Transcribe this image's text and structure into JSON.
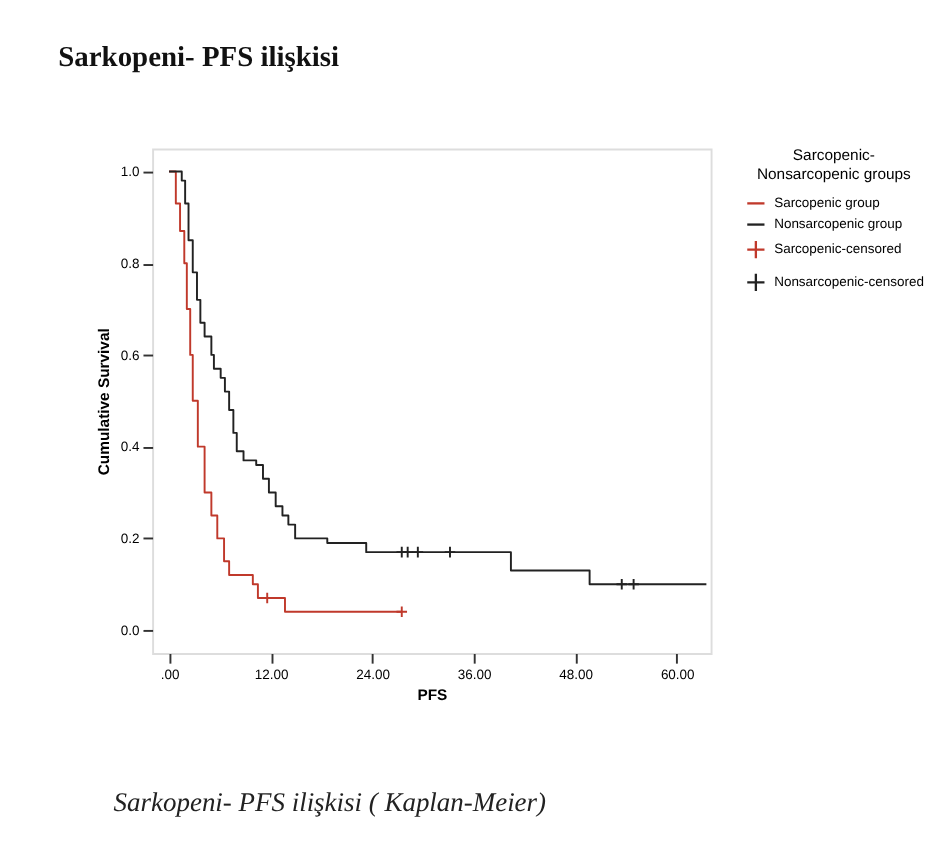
{
  "chart_data": {
    "type": "step",
    "title": "Sarkopeni- PFS ilişkisi",
    "xlabel": "PFS",
    "ylabel": "Cumulative Survival",
    "legend_title": "Sarcopenic-Nonsarcopenic groups",
    "legend": "right",
    "xlim": [
      -2,
      64
    ],
    "xticks": [
      {
        "value": 0,
        "label": ".00"
      },
      {
        "value": 12,
        "label": "12.00"
      },
      {
        "value": 24,
        "label": "24.00"
      },
      {
        "value": 36,
        "label": "36.00"
      },
      {
        "value": 48,
        "label": "48.00"
      },
      {
        "value": 60,
        "label": "60.00"
      }
    ],
    "ylim": [
      -0.05,
      1.05
    ],
    "yticks": [
      {
        "value": 0,
        "label": "0.0"
      },
      {
        "value": 0.2,
        "label": "0.2"
      },
      {
        "value": 0.4,
        "label": "0.4"
      },
      {
        "value": 0.6,
        "label": "0.6"
      },
      {
        "value": 0.8,
        "label": "0.8"
      },
      {
        "value": 1,
        "label": "1.0"
      }
    ],
    "grid": false,
    "series": [
      {
        "name": "Sarcopenic group",
        "color": "#c0392b",
        "x": [
          0,
          0.8,
          1.3,
          1.8,
          2.1,
          2.5,
          2.8,
          3.4,
          4.2,
          5.0,
          5.7,
          6.5,
          7.1,
          9.9,
          10.5,
          13.7,
          27.5
        ],
        "values": [
          1.0,
          0.93,
          0.87,
          0.8,
          0.7,
          0.6,
          0.5,
          0.4,
          0.3,
          0.25,
          0.2,
          0.15,
          0.12,
          0.1,
          0.07,
          0.04,
          0.04
        ]
      },
      {
        "name": "Nonsarcopenic group",
        "color": "#222222",
        "x": [
          0,
          1.5,
          1.9,
          2.3,
          2.8,
          3.3,
          3.7,
          4.2,
          5.0,
          5.3,
          6.1,
          6.6,
          7.1,
          7.6,
          8.0,
          8.8,
          10.3,
          11.1,
          11.8,
          12.6,
          13.4,
          14.1,
          14.9,
          18.7,
          23.3,
          40.4,
          49.7,
          63.5
        ],
        "values": [
          1.0,
          0.98,
          0.93,
          0.85,
          0.78,
          0.72,
          0.67,
          0.64,
          0.6,
          0.57,
          0.55,
          0.52,
          0.48,
          0.43,
          0.39,
          0.37,
          0.36,
          0.33,
          0.3,
          0.27,
          0.25,
          0.23,
          0.2,
          0.19,
          0.17,
          0.13,
          0.1,
          0.1
        ]
      },
      {
        "name": "Sarcopenic-censored",
        "type": "scatter",
        "marker": "cross",
        "color": "#c0392b",
        "x": [
          11.6,
          27.5
        ],
        "values": [
          0.07,
          0.04
        ]
      },
      {
        "name": "Nonsarcopenic-censored",
        "type": "scatter",
        "marker": "cross",
        "color": "#222222",
        "x": [
          27.5,
          28.2,
          29.4,
          33.2,
          53.5,
          54.9
        ],
        "values": [
          0.17,
          0.17,
          0.17,
          0.17,
          0.1,
          0.1
        ]
      }
    ],
    "annotations": [
      "Sarkopeni- PFS ilişkisi ( Kaplan-Meier)"
    ]
  }
}
